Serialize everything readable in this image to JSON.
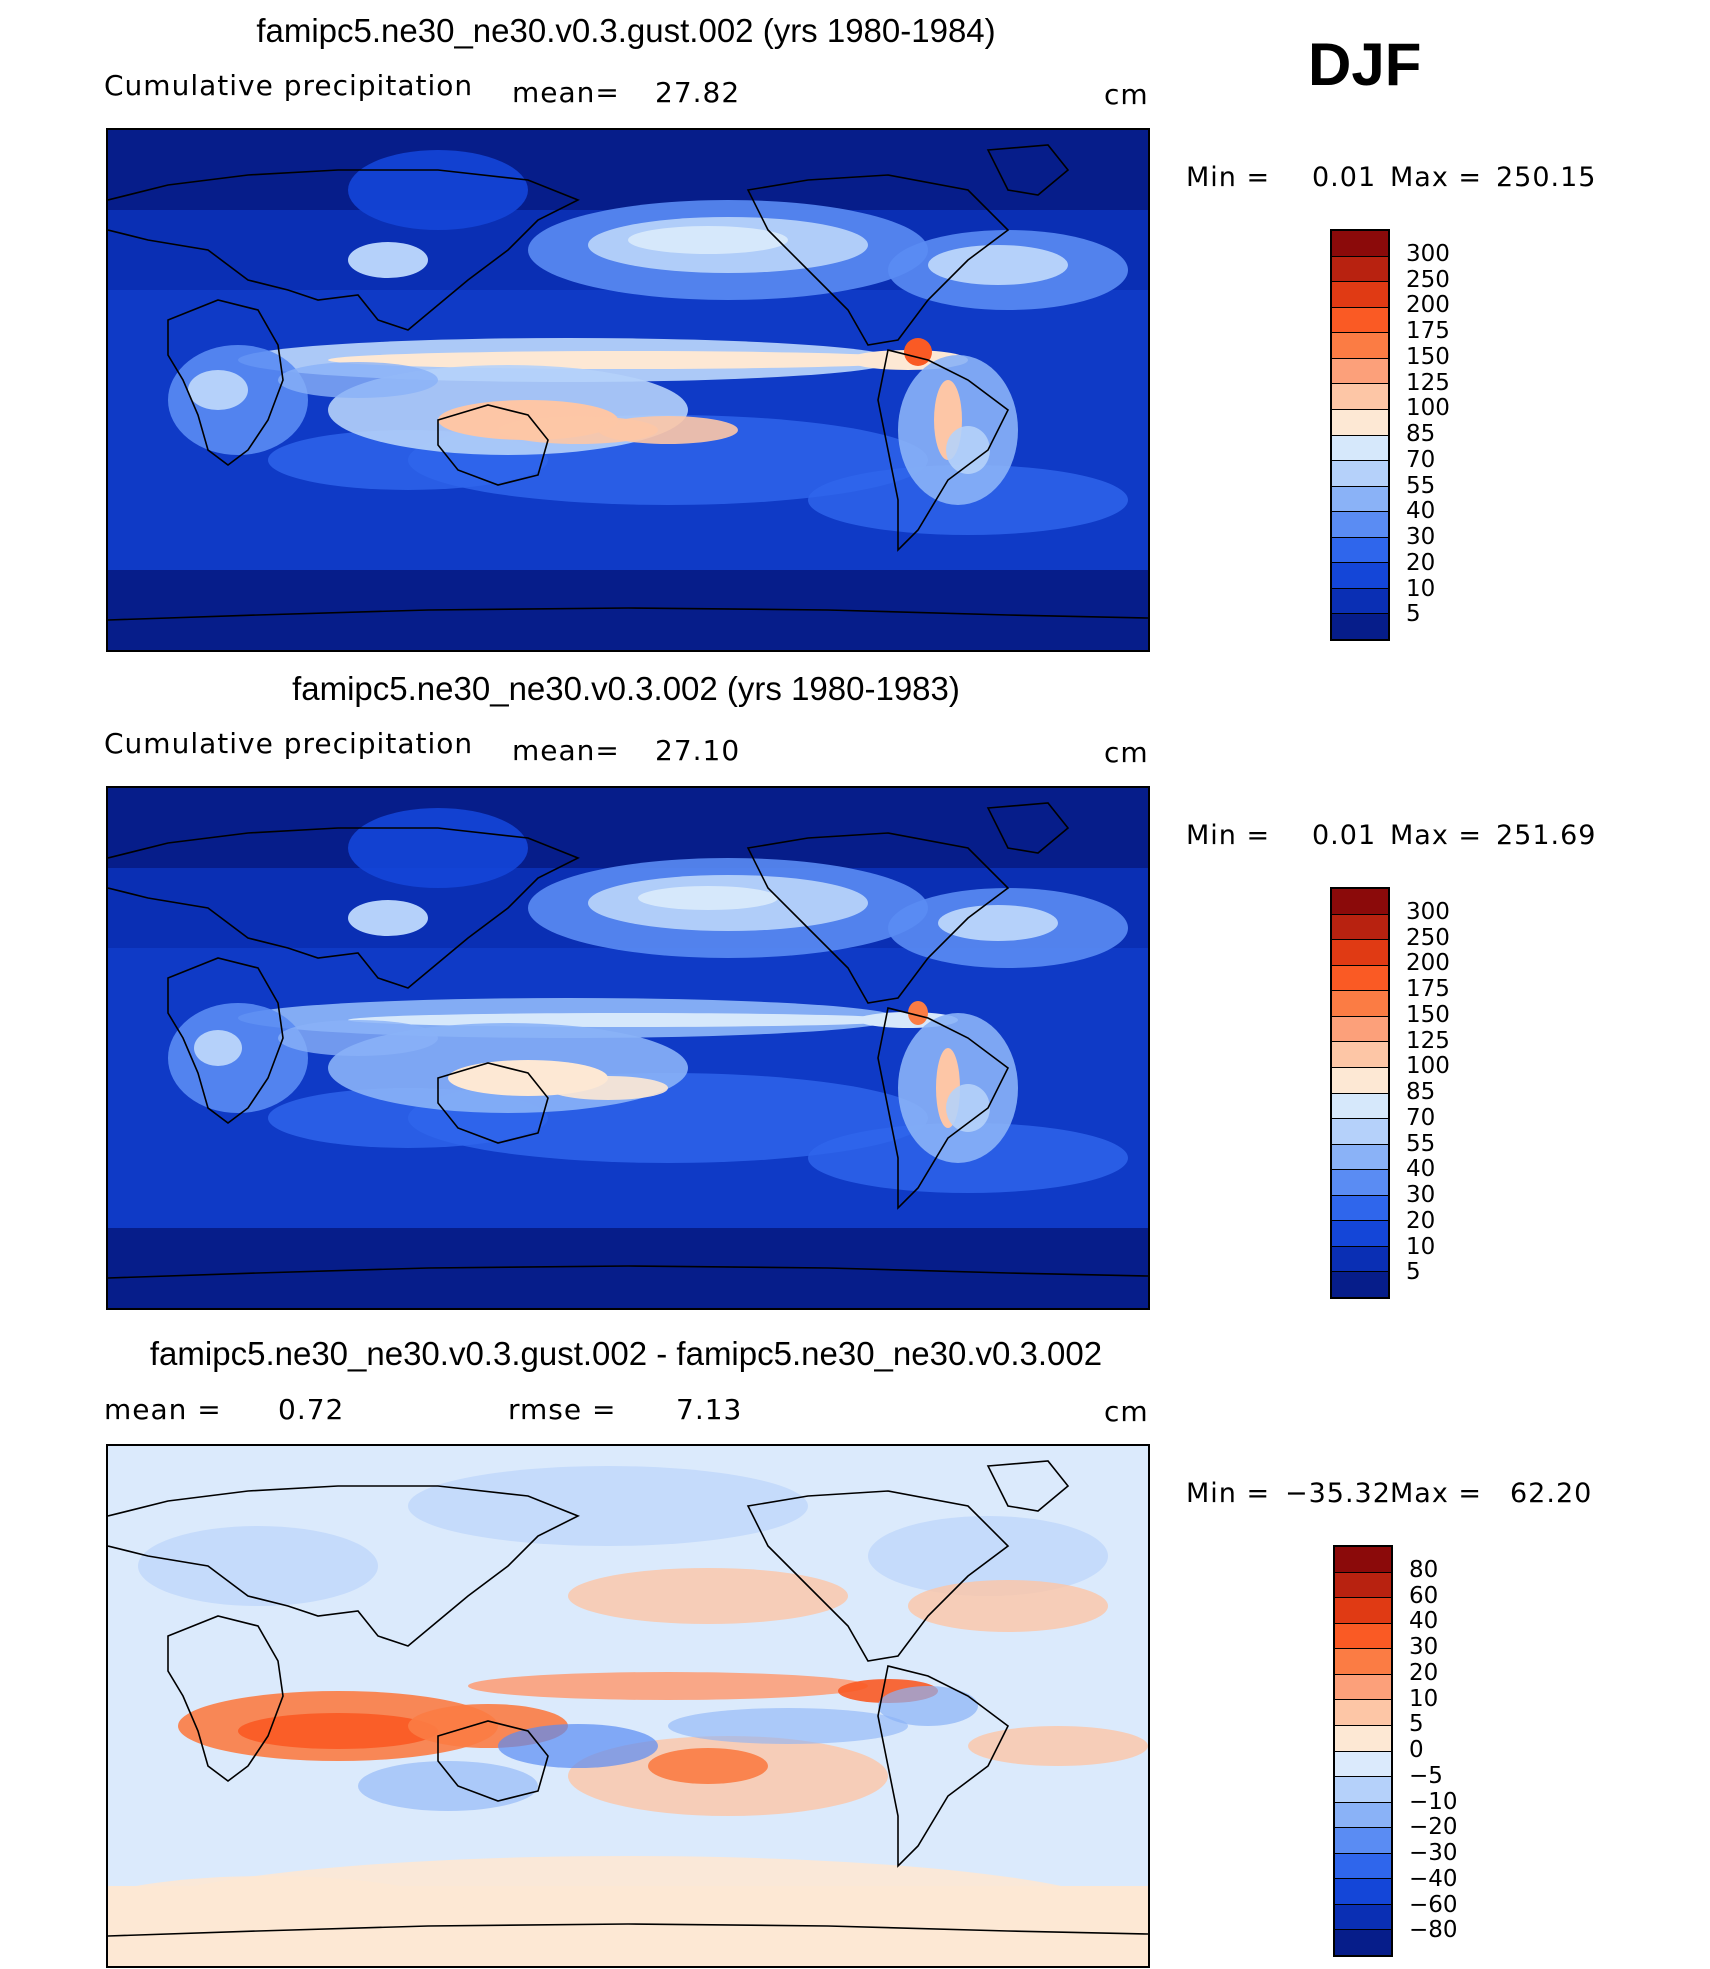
{
  "season": "DJF",
  "panels": [
    {
      "title": "famipc5.ne30_ne30.v0.3.gust.002 (yrs 1980-1984)",
      "left_label": "Cumulative precipitation",
      "mid_label": "mean=",
      "mid_value": "27.82",
      "units": "cm",
      "min_label": "Min =",
      "min_value": "0.01",
      "max_label": "Max =",
      "max_value": "250.15",
      "scheme": "precip"
    },
    {
      "title": "famipc5.ne30_ne30.v0.3.002 (yrs 1980-1983)",
      "left_label": "Cumulative precipitation",
      "mid_label": "mean=",
      "mid_value": "27.10",
      "units": "cm",
      "min_label": "Min =",
      "min_value": "0.01",
      "max_label": "Max =",
      "max_value": "251.69",
      "scheme": "precip"
    },
    {
      "title": "famipc5.ne30_ne30.v0.3.gust.002 - famipc5.ne30_ne30.v0.3.002",
      "left_label": "mean =",
      "left_value": "0.72",
      "mid_label": "rmse =",
      "mid_value": "7.13",
      "units": "cm",
      "min_label": "Min =",
      "min_value": "−35.32",
      "max_label": "Max =",
      "max_value": "62.20",
      "scheme": "diff"
    }
  ],
  "colorbars": {
    "precip": {
      "labels": [
        "300",
        "250",
        "200",
        "175",
        "150",
        "125",
        "100",
        "85",
        "70",
        "55",
        "40",
        "30",
        "20",
        "10",
        "5"
      ],
      "colors": [
        "#8b0a0a",
        "#b82210",
        "#e03a14",
        "#fa5a24",
        "#fb7c44",
        "#fca07a",
        "#fdc6a6",
        "#fde8d4",
        "#d6e8fb",
        "#b5d1fa",
        "#8ab2f7",
        "#5a8cf3",
        "#2f66ec",
        "#1446d8",
        "#0a2fb4",
        "#061d8a"
      ]
    },
    "diff": {
      "labels": [
        "80",
        "60",
        "40",
        "30",
        "20",
        "10",
        "5",
        "0",
        "−5",
        "−10",
        "−20",
        "−30",
        "−40",
        "−60",
        "−80"
      ],
      "colors": [
        "#8b0a0a",
        "#b82210",
        "#e03a14",
        "#fa5a24",
        "#fb7c44",
        "#fca07a",
        "#fdc6a6",
        "#fde8d4",
        "#dbeafc",
        "#b5d1fa",
        "#8ab2f7",
        "#5a8cf3",
        "#2f66ec",
        "#1446d8",
        "#0a2fb4",
        "#061d8a"
      ]
    }
  }
}
